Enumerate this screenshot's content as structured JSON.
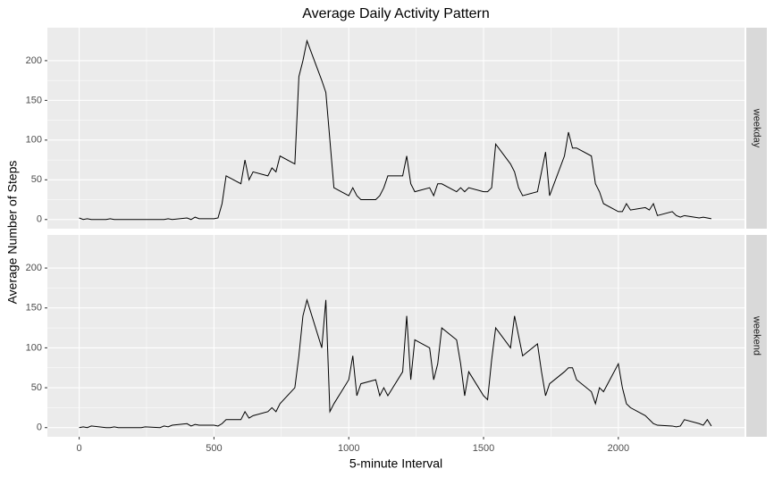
{
  "chart_data": {
    "type": "line",
    "facet": true,
    "title": "Average Daily Activity Pattern",
    "x_label": "5-minute Interval",
    "y_label": "Average Number of Steps",
    "x": [
      0,
      15,
      30,
      45,
      100,
      115,
      130,
      145,
      200,
      215,
      230,
      245,
      300,
      315,
      330,
      345,
      400,
      415,
      430,
      445,
      500,
      515,
      530,
      545,
      600,
      615,
      630,
      645,
      700,
      715,
      730,
      745,
      800,
      815,
      830,
      845,
      900,
      915,
      930,
      945,
      1000,
      1015,
      1030,
      1045,
      1100,
      1115,
      1130,
      1145,
      1200,
      1215,
      1230,
      1245,
      1300,
      1315,
      1330,
      1345,
      1400,
      1415,
      1430,
      1445,
      1500,
      1515,
      1530,
      1545,
      1600,
      1615,
      1630,
      1645,
      1700,
      1715,
      1730,
      1745,
      1800,
      1815,
      1830,
      1845,
      1900,
      1915,
      1930,
      1945,
      2000,
      2015,
      2030,
      2045,
      2100,
      2115,
      2130,
      2145,
      2200,
      2215,
      2230,
      2245,
      2300,
      2315,
      2330,
      2345
    ],
    "series": [
      {
        "name": "weekday",
        "color": "#000000",
        "values": [
          2,
          0,
          1,
          0,
          0,
          1,
          0,
          0,
          0,
          0,
          0,
          0,
          0,
          0,
          1,
          0,
          2,
          0,
          3,
          1,
          1,
          2,
          20,
          55,
          45,
          75,
          50,
          60,
          55,
          65,
          60,
          80,
          70,
          180,
          200,
          225,
          175,
          160,
          100,
          40,
          30,
          40,
          30,
          25,
          25,
          30,
          40,
          55,
          55,
          80,
          45,
          35,
          40,
          30,
          45,
          45,
          35,
          40,
          35,
          40,
          35,
          35,
          40,
          95,
          70,
          60,
          40,
          30,
          35,
          60,
          85,
          30,
          80,
          110,
          90,
          90,
          80,
          45,
          35,
          20,
          10,
          10,
          20,
          12,
          15,
          12,
          20,
          5,
          10,
          5,
          3,
          5,
          2,
          3,
          2,
          1
        ]
      },
      {
        "name": "weekend",
        "color": "#000000",
        "values": [
          0,
          1,
          0,
          2,
          0,
          0,
          1,
          0,
          0,
          0,
          0,
          1,
          0,
          2,
          1,
          3,
          5,
          2,
          4,
          3,
          3,
          2,
          5,
          10,
          10,
          20,
          12,
          15,
          20,
          25,
          20,
          30,
          50,
          90,
          140,
          160,
          100,
          160,
          20,
          30,
          60,
          90,
          40,
          55,
          60,
          40,
          50,
          40,
          70,
          140,
          60,
          110,
          100,
          60,
          80,
          125,
          110,
          80,
          40,
          70,
          40,
          35,
          85,
          125,
          100,
          140,
          115,
          90,
          105,
          70,
          40,
          55,
          70,
          75,
          75,
          60,
          45,
          30,
          50,
          45,
          80,
          50,
          30,
          25,
          15,
          10,
          5,
          3,
          2,
          1,
          2,
          10,
          5,
          3,
          10,
          2
        ]
      }
    ],
    "xlim": [
      -118,
      2468
    ],
    "xticks": [
      0,
      500,
      1000,
      1500,
      2000
    ],
    "ylim": [
      -11.5,
      241.5
    ],
    "yticks": [
      0,
      50,
      100,
      150,
      200
    ],
    "grid": true,
    "panel_color": "#ebebeb",
    "strip_color": "#d9d9d9"
  }
}
